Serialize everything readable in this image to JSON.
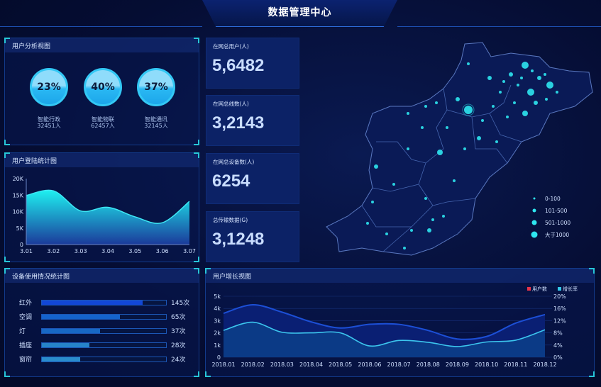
{
  "header": {
    "title": "数据管理中心"
  },
  "user_analysis": {
    "title": "用户分析视图",
    "items": [
      {
        "percent": "23%",
        "label": "智能行政",
        "count": "32451人",
        "fill": 0.23
      },
      {
        "percent": "40%",
        "label": "智能物联",
        "count": "62457人",
        "fill": 0.4
      },
      {
        "percent": "37%",
        "label": "智能通讯",
        "count": "32145人",
        "fill": 0.37
      }
    ]
  },
  "login_chart": {
    "title": "用户登陆统计图"
  },
  "stats": [
    {
      "label": "在网总用户(人)",
      "value": "5,6482"
    },
    {
      "label": "在网总线数(人)",
      "value": "3,2143"
    },
    {
      "label": "在网总设备数(人)",
      "value": "6254"
    },
    {
      "label": "总传输数据(G)",
      "value": "3,1248"
    }
  ],
  "map": {
    "legend": [
      "0-100",
      "101-500",
      "501-1000",
      "大于1000"
    ],
    "dot_color": "#2ee6f0"
  },
  "device_usage": {
    "title": "设备使用情况统计图",
    "items": [
      {
        "label": "红外",
        "value": "145次",
        "fill": 0.81,
        "color": "#1247d6"
      },
      {
        "label": "空调",
        "value": "65次",
        "fill": 0.63,
        "color": "#1463cc"
      },
      {
        "label": "灯",
        "value": "37次",
        "fill": 0.47,
        "color": "#1768c4"
      },
      {
        "label": "插座",
        "value": "28次",
        "fill": 0.38,
        "color": "#2683c9"
      },
      {
        "label": "窗帘",
        "value": "24次",
        "fill": 0.31,
        "color": "#2a8ccc"
      }
    ]
  },
  "growth": {
    "title": "用户增长视图"
  },
  "chart_data": [
    {
      "type": "area",
      "title": "用户登陆统计图",
      "categories": [
        "3.01",
        "3.02",
        "3.03",
        "3.04",
        "3.05",
        "3.06",
        "3.07"
      ],
      "values": [
        14900,
        16300,
        10200,
        11300,
        8400,
        6600,
        13100
      ],
      "ylim": [
        0,
        20000
      ],
      "yticks": [
        "0",
        "5K",
        "10K",
        "15K",
        "20K"
      ]
    },
    {
      "type": "area",
      "title": "用户增长视图",
      "categories": [
        "2018.01",
        "2018.02",
        "2018.03",
        "2018.04",
        "2018.05",
        "2018.06",
        "2018.07",
        "2018.08",
        "2018.09",
        "2018.10",
        "2018.11",
        "2018.12"
      ],
      "series": [
        {
          "name": "用户数",
          "axis": "left",
          "values": [
            3600,
            4300,
            3700,
            2900,
            2400,
            2700,
            2700,
            2200,
            1500,
            1700,
            2800,
            3500
          ],
          "color": "#e8344a"
        },
        {
          "name": "增长率",
          "axis": "right",
          "values": [
            8.8,
            11.5,
            8.2,
            8.0,
            8.0,
            3.7,
            5.5,
            4.9,
            3.5,
            5.0,
            5.6,
            9.0
          ],
          "color": "#33c8ea"
        }
      ],
      "ylim_left": [
        0,
        5000
      ],
      "yticks_left": [
        "0",
        "1k",
        "2k",
        "3k",
        "4k",
        "5k"
      ],
      "ylim_right": [
        0,
        20
      ],
      "yticks_right": [
        "0%",
        "4%",
        "8%",
        "12%",
        "16%",
        "20%"
      ],
      "legend": "top-right",
      "grid": true
    }
  ]
}
